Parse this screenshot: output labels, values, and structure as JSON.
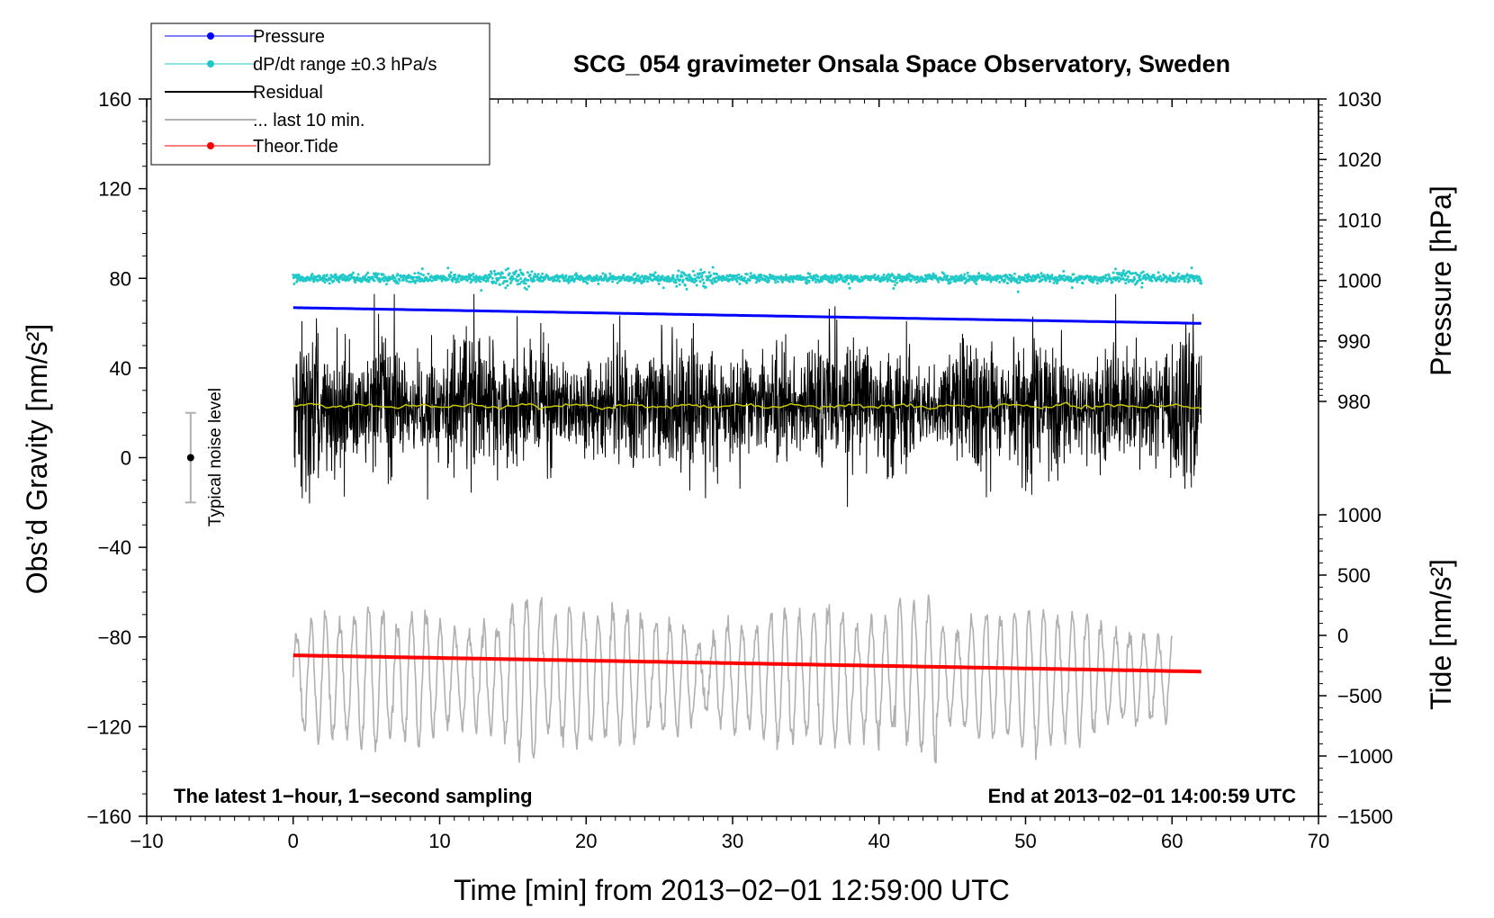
{
  "chart_data": {
    "type": "line",
    "title": "SCG_054 gravimeter Onsala Space Observatory, Sweden",
    "xlabel": "Time [min] from 2013−02−01 12:59:00 UTC",
    "ylabel_left": "Obs’d Gravity [nm/s²]",
    "ylabel_right_upper": "Pressure [hPa]",
    "ylabel_right_lower": "Tide [nm/s²]",
    "xlim": [
      -10,
      70
    ],
    "ylim_left": [
      -160,
      160
    ],
    "ylim_right_pressure": [
      980,
      1030
    ],
    "ylim_right_tide": [
      -1500,
      1000
    ],
    "xticks": [
      -10,
      0,
      10,
      20,
      30,
      40,
      50,
      60,
      70
    ],
    "xtick_labels": [
      "−10",
      "0",
      "10",
      "20",
      "30",
      "40",
      "50",
      "60",
      "70"
    ],
    "yticks_left": [
      160,
      120,
      80,
      40,
      0,
      -40,
      -80,
      -120,
      -160
    ],
    "ytick_labels_left": [
      "160",
      "120",
      "80",
      "40",
      "0",
      "−40",
      "−80",
      "−120",
      "−160"
    ],
    "yticks_pressure": [
      1030,
      1020,
      1010,
      1000,
      990,
      980
    ],
    "ytick_labels_pressure": [
      "1030",
      "1020",
      "1010",
      "1000",
      "990",
      "980"
    ],
    "yticks_tide": [
      1000,
      500,
      0,
      -500,
      -1000,
      -1500
    ],
    "ytick_labels_tide": [
      "1000",
      "500",
      "0",
      "−500",
      "−1000",
      "−1500"
    ],
    "legend": [
      {
        "label": "Pressure",
        "color": "#0000ff",
        "marker": "dot"
      },
      {
        "label": "dP/dt range ±0.3 hPa/s",
        "color": "#20c8c8",
        "marker": "dot"
      },
      {
        "label": "Residual",
        "color": "#000000",
        "marker": "none"
      },
      {
        "label": "... last 10 min.",
        "color": "#b0b0b0",
        "marker": "none"
      },
      {
        "label": "Theor.Tide",
        "color": "#ff0000",
        "marker": "dot"
      }
    ],
    "series": [
      {
        "name": "Pressure",
        "axis": "pressure",
        "color": "#0000ff",
        "x_range": [
          0,
          62
        ],
        "start": 995.5,
        "end": 992.9
      },
      {
        "name": "dP/dt range ±0.3 hPa/s",
        "axis": "left",
        "color": "#20c8c8",
        "x_range": [
          0,
          62
        ],
        "center": 80,
        "spread": 3
      },
      {
        "name": "Residual",
        "axis": "left",
        "color": "#000000",
        "x_range": [
          0,
          62
        ],
        "center": 23,
        "min": -22,
        "max": 73
      },
      {
        "name": "Residual mean",
        "axis": "left",
        "color": "#c8c800",
        "x_range": [
          0,
          62
        ],
        "center": 23
      },
      {
        "name": "... last 10 min.",
        "axis": "left",
        "color": "#b0b0b0",
        "x_range": [
          0,
          60
        ],
        "center": -98,
        "min": -143,
        "max": -48
      },
      {
        "name": "Theor.Tide",
        "axis": "tide",
        "color": "#ff0000",
        "x_range": [
          0,
          62
        ],
        "start": -165,
        "end": -300
      }
    ],
    "noise_bar": {
      "label": "Typical noise level",
      "x": -7,
      "center": 0,
      "low": -20,
      "high": 20
    },
    "annotations": {
      "left": "The latest 1−hour, 1−second sampling",
      "right": "End at 2013−02−01 14:00:59 UTC"
    }
  }
}
